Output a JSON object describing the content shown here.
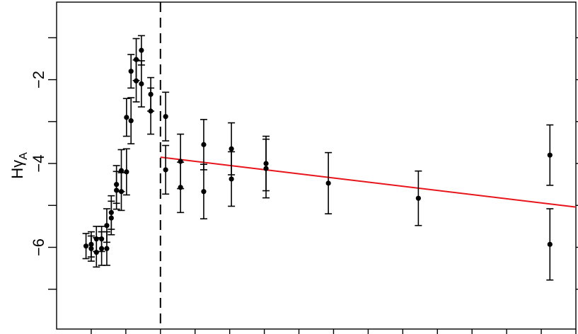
{
  "chart_data": {
    "type": "scatter",
    "title": "",
    "xlabel": "",
    "ylabel": {
      "main": "Hγ",
      "subscript": "A"
    },
    "xlim": [
      0,
      15
    ],
    "ylim": [
      -7.95,
      -0.15
    ],
    "y_ticks": [
      -6,
      -4,
      -2
    ],
    "y_tick_labels": [
      "−6",
      "−4",
      "−2"
    ],
    "x_tick_count": 15,
    "grid": false,
    "vertical_marker": {
      "x": 3.0,
      "style": "dashed",
      "color": "#000000"
    },
    "fit_line": {
      "x": [
        3.0,
        15.0
      ],
      "y": [
        -3.85,
        -5.04
      ],
      "color": "#e8141a"
    },
    "series": [
      {
        "marker": "filled-circle",
        "color": "#000000",
        "points": [
          {
            "x": 0.85,
            "y": -5.97,
            "err": 0.3
          },
          {
            "x": 1.0,
            "y": -5.93,
            "err": 0.3
          },
          {
            "x": 1.0,
            "y": -6.03,
            "err": 0.3
          },
          {
            "x": 1.15,
            "y": -6.12,
            "err": 0.35
          },
          {
            "x": 1.15,
            "y": -5.8,
            "err": 0.3
          },
          {
            "x": 1.3,
            "y": -5.8,
            "err": 0.3
          },
          {
            "x": 1.3,
            "y": -6.03,
            "err": 0.4
          },
          {
            "x": 1.45,
            "y": -6.03,
            "err": 0.4
          },
          {
            "x": 1.45,
            "y": -5.48,
            "err": 0.4
          },
          {
            "x": 1.58,
            "y": -5.3,
            "err": 0.4
          },
          {
            "x": 1.58,
            "y": -5.17,
            "err": 0.4
          },
          {
            "x": 1.73,
            "y": -4.64,
            "err": 0.45
          },
          {
            "x": 1.73,
            "y": -4.5,
            "err": 0.45
          },
          {
            "x": 1.87,
            "y": -4.67,
            "err": 0.45
          },
          {
            "x": 1.87,
            "y": -4.17,
            "err": 0.5
          },
          {
            "x": 2.02,
            "y": -4.2,
            "err": 0.55
          },
          {
            "x": 2.02,
            "y": -2.9,
            "err": 0.45
          },
          {
            "x": 2.15,
            "y": -2.98,
            "err": 0.55
          },
          {
            "x": 2.15,
            "y": -1.8,
            "err": 0.4
          },
          {
            "x": 2.3,
            "y": -1.52,
            "err": 0.5
          },
          {
            "x": 2.3,
            "y": -2.03,
            "err": 0.5
          },
          {
            "x": 2.45,
            "y": -1.3,
            "err": 0.35
          },
          {
            "x": 2.45,
            "y": -2.1,
            "err": 0.55
          },
          {
            "x": 2.72,
            "y": -2.35,
            "err": 0.4
          },
          {
            "x": 2.72,
            "y": -2.75,
            "err": 0.55
          },
          {
            "x": 3.15,
            "y": -2.88,
            "err": 0.58
          },
          {
            "x": 3.15,
            "y": -4.15,
            "err": 0.58
          },
          {
            "x": 3.58,
            "y": -3.95,
            "err": 0.65
          },
          {
            "x": 3.58,
            "y": -4.57,
            "err": 0.6
          },
          {
            "x": 4.25,
            "y": -3.55,
            "err": 0.6
          },
          {
            "x": 4.25,
            "y": -4.67,
            "err": 0.65
          },
          {
            "x": 5.05,
            "y": -3.65,
            "err": 0.62
          },
          {
            "x": 5.05,
            "y": -4.37,
            "err": 0.65
          },
          {
            "x": 6.05,
            "y": -4.0,
            "err": 0.65
          },
          {
            "x": 6.05,
            "y": -4.12,
            "err": 0.7
          },
          {
            "x": 7.85,
            "y": -4.47,
            "err": 0.73
          },
          {
            "x": 10.45,
            "y": -4.83,
            "err": 0.65
          },
          {
            "x": 14.25,
            "y": -3.8,
            "err": 0.72
          },
          {
            "x": 14.25,
            "y": -5.93,
            "err": 0.85
          }
        ]
      }
    ]
  }
}
